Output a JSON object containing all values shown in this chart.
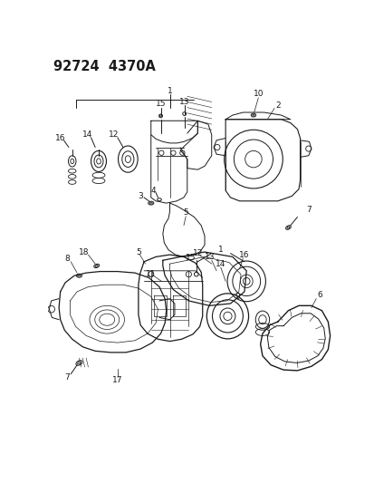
{
  "title": "92724  4370A",
  "background_color": "#ffffff",
  "fig_width": 4.14,
  "fig_height": 5.33,
  "dpi": 100,
  "line_color": "#1a1a1a",
  "label_fontsize": 6.5,
  "title_fontsize": 10.5,
  "title_fontweight": "bold"
}
